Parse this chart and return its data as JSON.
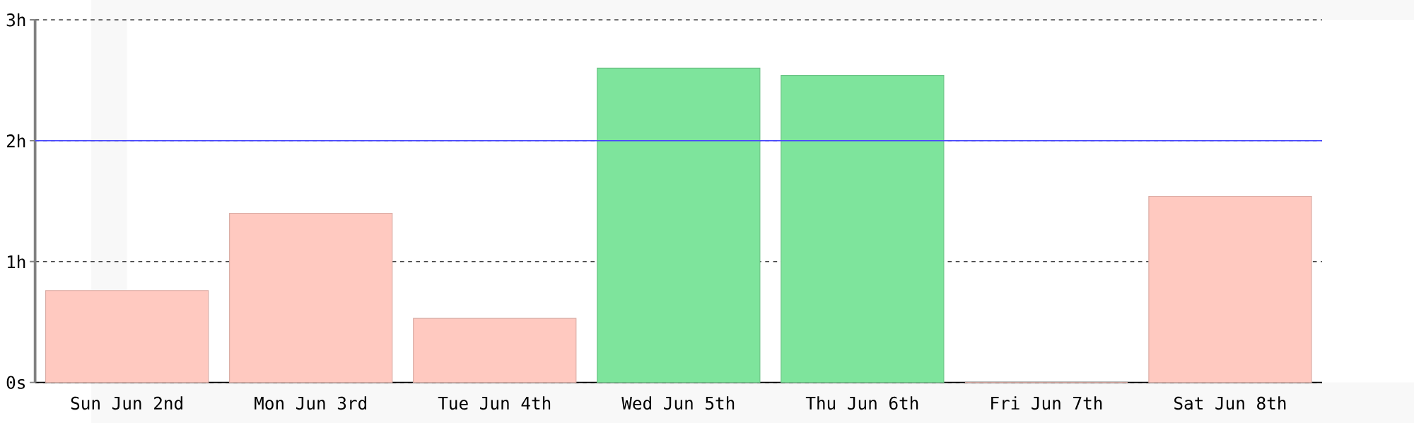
{
  "chart_data": {
    "type": "bar",
    "categories": [
      "Sun Jun 2nd",
      "Mon Jun 3rd",
      "Tue Jun 4th",
      "Wed Jun 5th",
      "Thu Jun 6th",
      "Fri Jun 7th",
      "Sat Jun 8th"
    ],
    "values": [
      0.76,
      1.4,
      0.53,
      2.6,
      2.54,
      0,
      1.54
    ],
    "colors": [
      "#ffc9c0",
      "#ffc9c0",
      "#ffc9c0",
      "#7ee49c",
      "#7ee49c",
      "#ffc9c0",
      "#ffc9c0"
    ],
    "ylim": [
      0,
      3
    ],
    "yticks": [
      {
        "value": 0,
        "label": "0s"
      },
      {
        "value": 1,
        "label": "1h"
      },
      {
        "value": 2,
        "label": "2h"
      },
      {
        "value": 3,
        "label": "3h"
      }
    ],
    "grid": "y",
    "ref_lines": [
      {
        "axis": "y",
        "value": 2,
        "color": "#4a4aff"
      }
    ]
  }
}
